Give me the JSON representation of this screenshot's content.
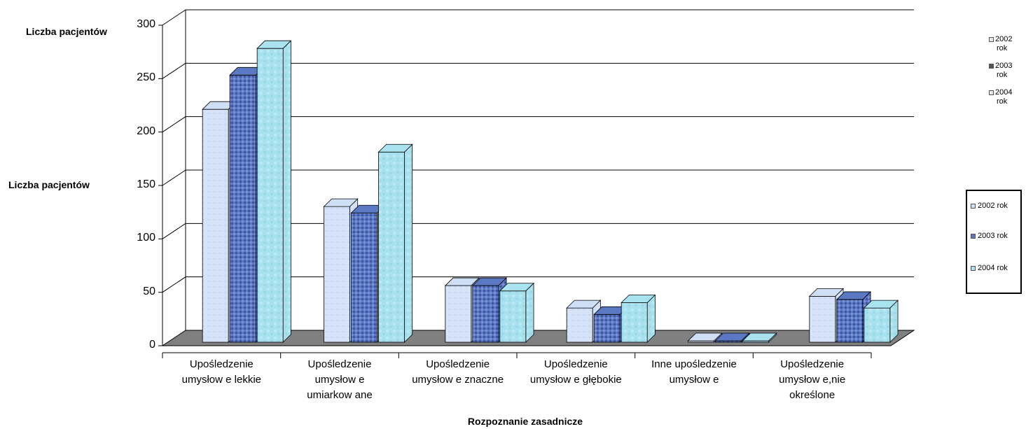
{
  "chart_data": {
    "type": "bar",
    "title": "",
    "xlabel": "Rozpoznanie zasadnicze",
    "ylabel": "Liczba pacjentów",
    "ylabel_repeat": "Liczba pacjentów",
    "ylim": [
      0,
      300
    ],
    "yticks": [
      "0",
      "50",
      "100",
      "150",
      "200",
      "250",
      "300"
    ],
    "categories": [
      [
        "Upośledzenie",
        "umysłow e lekkie"
      ],
      [
        "Upośledzenie",
        "umysłow e",
        "umiarkow ane"
      ],
      [
        "Upośledzenie",
        "umysłow e znaczne"
      ],
      [
        "Upośledzenie",
        "umysłow e głębokie"
      ],
      [
        "Inne upośledzenie",
        "umysłow e"
      ],
      [
        "Upośledzenie",
        "umysłow e,nie",
        "określone"
      ]
    ],
    "series": [
      {
        "name": "2002 rok",
        "values": [
          218,
          127,
          53,
          32,
          1,
          43
        ]
      },
      {
        "name": "2003 rok",
        "values": [
          250,
          121,
          53,
          26,
          1,
          40
        ]
      },
      {
        "name": "2004 rok",
        "values": [
          275,
          178,
          48,
          37,
          1,
          32
        ]
      }
    ],
    "grid": true,
    "three_d": true,
    "legends": [
      {
        "placement": "right-top",
        "border": false,
        "entries": [
          [
            "2002",
            "rok"
          ],
          [
            "2003",
            "rok"
          ],
          [
            "2004",
            "rok"
          ]
        ]
      },
      {
        "placement": "right-middle",
        "border": true,
        "entries": [
          "2002 rok",
          "2003 rok",
          "2004 rok"
        ]
      }
    ],
    "colors": {
      "s2002": "#cfe0f6",
      "s2003": "#5b78c2",
      "s2004": "#a9e3ef",
      "floor": "#808080",
      "grid": "#000000"
    }
  }
}
